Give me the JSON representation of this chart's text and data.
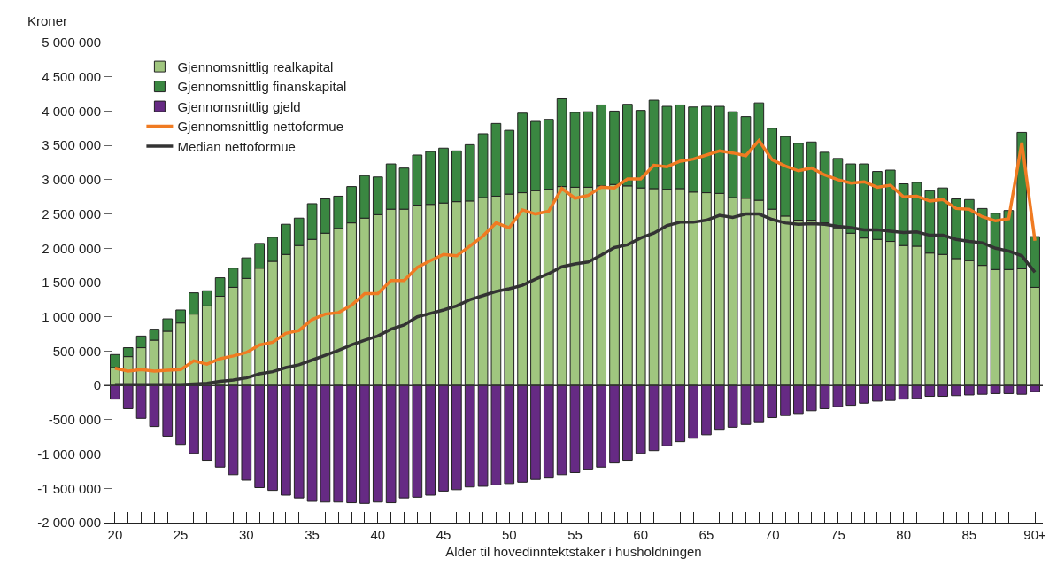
{
  "chart_data": {
    "type": "bar",
    "stacked": true,
    "xlabel": "Alder til hovedinntektstaker i husholdningen",
    "ylabel": "Kroner",
    "categories": [
      "20",
      null,
      null,
      null,
      null,
      "25",
      null,
      null,
      null,
      null,
      "30",
      null,
      null,
      null,
      null,
      "35",
      null,
      null,
      null,
      null,
      "40",
      null,
      null,
      null,
      null,
      "45",
      null,
      null,
      null,
      null,
      "50",
      null,
      null,
      null,
      null,
      "55",
      null,
      null,
      null,
      null,
      "60",
      null,
      null,
      null,
      null,
      "65",
      null,
      null,
      null,
      null,
      "70",
      null,
      null,
      null,
      null,
      "75",
      null,
      null,
      null,
      null,
      "80",
      null,
      null,
      null,
      null,
      "85",
      null,
      null,
      null,
      null,
      "90+"
    ],
    "series": [
      {
        "name": "Gjennomsnittlig realkapital",
        "color": "#a0c67f",
        "values": [
          260000,
          420000,
          550000,
          660000,
          790000,
          910000,
          1040000,
          1160000,
          1300000,
          1430000,
          1560000,
          1710000,
          1810000,
          1910000,
          2040000,
          2130000,
          2220000,
          2290000,
          2370000,
          2440000,
          2490000,
          2570000,
          2570000,
          2630000,
          2640000,
          2660000,
          2680000,
          2690000,
          2740000,
          2760000,
          2790000,
          2810000,
          2840000,
          2860000,
          2900000,
          2890000,
          2890000,
          2910000,
          2930000,
          2910000,
          2880000,
          2870000,
          2860000,
          2870000,
          2820000,
          2810000,
          2800000,
          2740000,
          2730000,
          2700000,
          2570000,
          2470000,
          2410000,
          2410000,
          2370000,
          2300000,
          2220000,
          2150000,
          2130000,
          2100000,
          2040000,
          2030000,
          1930000,
          1910000,
          1850000,
          1820000,
          1750000,
          1690000,
          1690000,
          1700000,
          1430000
        ]
      },
      {
        "name": "Gjennomsnittlig finanskapital",
        "color": "#3a8741",
        "values": [
          190000,
          130000,
          170000,
          160000,
          180000,
          190000,
          310000,
          220000,
          270000,
          280000,
          300000,
          360000,
          350000,
          440000,
          400000,
          520000,
          500000,
          470000,
          530000,
          620000,
          550000,
          660000,
          600000,
          730000,
          770000,
          800000,
          740000,
          820000,
          930000,
          1060000,
          930000,
          1160000,
          1010000,
          1020000,
          1280000,
          1090000,
          1100000,
          1180000,
          1070000,
          1190000,
          1130000,
          1290000,
          1210000,
          1220000,
          1240000,
          1260000,
          1270000,
          1250000,
          1190000,
          1420000,
          1180000,
          1160000,
          1120000,
          1140000,
          1030000,
          1010000,
          1010000,
          1080000,
          990000,
          1040000,
          900000,
          930000,
          910000,
          970000,
          870000,
          890000,
          830000,
          820000,
          860000,
          1990000,
          740000
        ]
      },
      {
        "name": "Gjennomsnittlig gjeld",
        "color": "#662a84",
        "values": [
          -200000,
          -340000,
          -480000,
          -600000,
          -740000,
          -860000,
          -990000,
          -1090000,
          -1190000,
          -1300000,
          -1380000,
          -1490000,
          -1530000,
          -1600000,
          -1640000,
          -1690000,
          -1700000,
          -1700000,
          -1710000,
          -1720000,
          -1700000,
          -1710000,
          -1640000,
          -1630000,
          -1600000,
          -1540000,
          -1520000,
          -1480000,
          -1470000,
          -1450000,
          -1430000,
          -1410000,
          -1370000,
          -1350000,
          -1300000,
          -1270000,
          -1230000,
          -1190000,
          -1130000,
          -1090000,
          -990000,
          -950000,
          -880000,
          -820000,
          -770000,
          -720000,
          -640000,
          -610000,
          -570000,
          -530000,
          -470000,
          -440000,
          -410000,
          -370000,
          -340000,
          -310000,
          -290000,
          -260000,
          -230000,
          -220000,
          -200000,
          -190000,
          -160000,
          -160000,
          -150000,
          -140000,
          -130000,
          -120000,
          -120000,
          -130000,
          -90000
        ]
      },
      {
        "name": "Gjennomsnittlig nettoformue",
        "type": "line",
        "color": "#f07b22",
        "values": [
          250000,
          210000,
          230000,
          210000,
          220000,
          230000,
          360000,
          310000,
          390000,
          430000,
          480000,
          590000,
          630000,
          760000,
          800000,
          960000,
          1040000,
          1060000,
          1170000,
          1340000,
          1340000,
          1530000,
          1530000,
          1720000,
          1820000,
          1910000,
          1890000,
          2030000,
          2180000,
          2370000,
          2300000,
          2560000,
          2500000,
          2540000,
          2870000,
          2730000,
          2770000,
          2890000,
          2880000,
          3010000,
          3010000,
          3210000,
          3190000,
          3270000,
          3300000,
          3360000,
          3420000,
          3390000,
          3350000,
          3570000,
          3290000,
          3200000,
          3130000,
          3170000,
          3070000,
          3000000,
          2950000,
          2970000,
          2890000,
          2920000,
          2750000,
          2760000,
          2690000,
          2710000,
          2580000,
          2570000,
          2460000,
          2400000,
          2430000,
          3540000,
          2110000
        ]
      },
      {
        "name": "Median nettoformue",
        "type": "line",
        "color": "#333333",
        "values": [
          10000,
          10000,
          10000,
          10000,
          10000,
          10000,
          20000,
          30000,
          60000,
          80000,
          110000,
          170000,
          200000,
          260000,
          300000,
          370000,
          440000,
          510000,
          590000,
          660000,
          720000,
          820000,
          880000,
          1000000,
          1050000,
          1100000,
          1160000,
          1250000,
          1310000,
          1370000,
          1410000,
          1460000,
          1550000,
          1630000,
          1730000,
          1770000,
          1800000,
          1900000,
          2010000,
          2050000,
          2150000,
          2220000,
          2330000,
          2380000,
          2380000,
          2410000,
          2480000,
          2450000,
          2500000,
          2500000,
          2420000,
          2370000,
          2350000,
          2360000,
          2350000,
          2320000,
          2300000,
          2270000,
          2270000,
          2250000,
          2230000,
          2240000,
          2190000,
          2190000,
          2130000,
          2100000,
          2080000,
          2000000,
          1960000,
          1890000,
          1650000
        ]
      }
    ],
    "ylim": [
      -2000000,
      5000000
    ],
    "yticks": [
      {
        "value": -2000000,
        "label": "-2 000 000"
      },
      {
        "value": -1500000,
        "label": "-1 500 000"
      },
      {
        "value": -1000000,
        "label": "-1 000 000"
      },
      {
        "value": -500000,
        "label": "-500 000"
      },
      0,
      {
        "value": 500000,
        "label": "500 000"
      },
      {
        "value": 1000000,
        "label": "1 000 000"
      },
      {
        "value": 1500000,
        "label": "1 500 000"
      },
      {
        "value": 2000000,
        "label": "2 000 000"
      },
      {
        "value": 2500000,
        "label": "2 500 000"
      },
      {
        "value": 3000000,
        "label": "3 000 000"
      },
      {
        "value": 3500000,
        "label": "3 500 000"
      },
      {
        "value": 4000000,
        "label": "4 000 000"
      },
      {
        "value": 4500000,
        "label": "4 500 000"
      },
      {
        "value": 5000000,
        "label": "5 000 000"
      }
    ],
    "ref_lines": [
      {
        "axis": "y",
        "value": 0,
        "color": "#333333"
      }
    ],
    "legend": "top left",
    "grid": false,
    "line_style": "solid"
  }
}
